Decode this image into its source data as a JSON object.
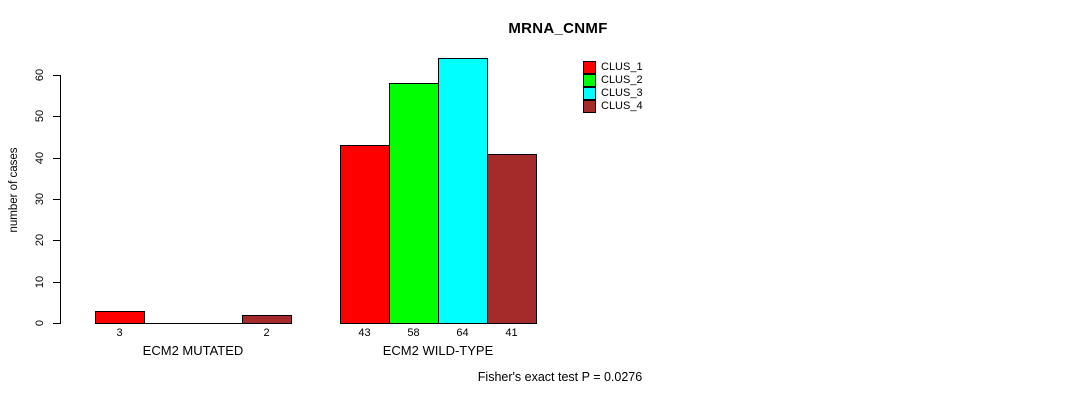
{
  "title": "MRNA_CNMF",
  "footer": "Fisher's exact test P = 0.0276",
  "chart_data": {
    "type": "bar",
    "title": "MRNA_CNMF",
    "xlabel": "",
    "ylabel": "number of cases",
    "ylim": [
      0,
      60
    ],
    "yticks": [
      0,
      10,
      20,
      30,
      40,
      50,
      60
    ],
    "grid": false,
    "legend_position": "top-right",
    "series": [
      "CLUS_1",
      "CLUS_2",
      "CLUS_3",
      "CLUS_4"
    ],
    "colors": [
      "#FF0000",
      "#00FF00",
      "#00FFFF",
      "#A52A2A"
    ],
    "groups": [
      {
        "label": "ECM2 MUTATED",
        "values": [
          3,
          0,
          0,
          2
        ]
      },
      {
        "label": "ECM2 WILD-TYPE",
        "values": [
          43,
          58,
          64,
          41
        ]
      }
    ],
    "bar_value_labels_shown_for_nonzero_only": true,
    "annotation": "Fisher's exact test P = 0.0276"
  }
}
